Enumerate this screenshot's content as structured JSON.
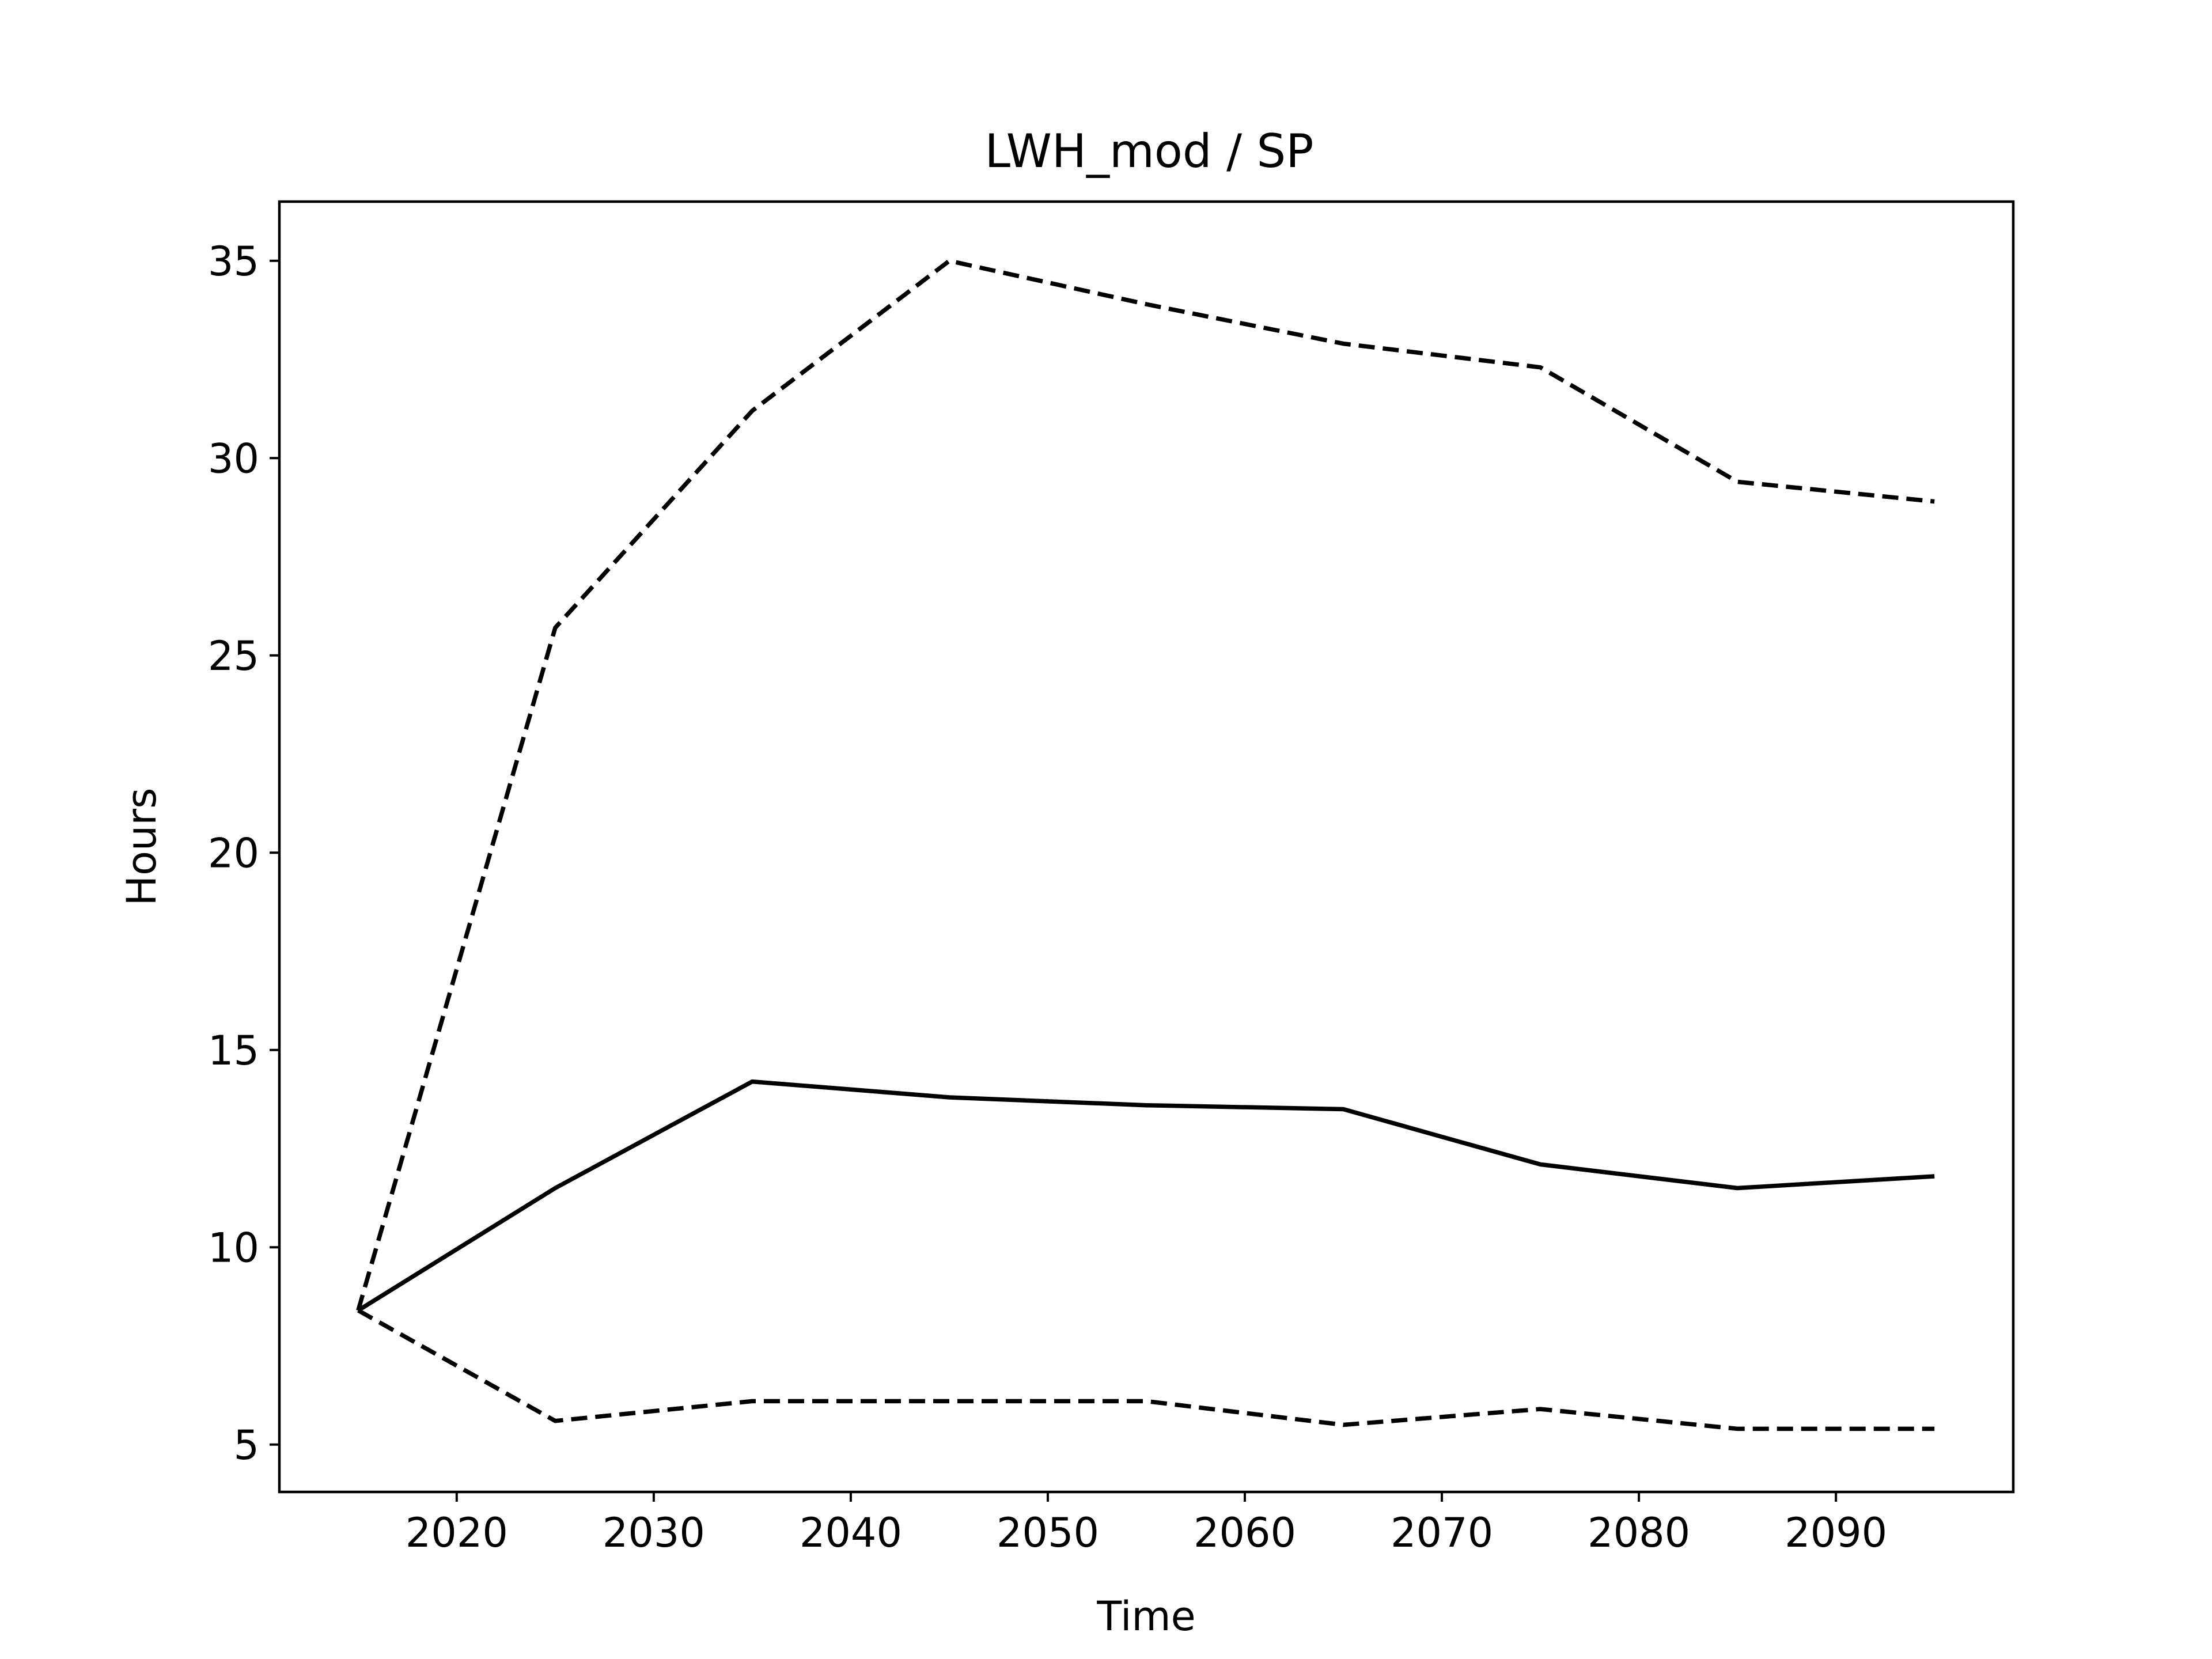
{
  "chart_data": {
    "type": "line",
    "title": "LWH_mod / SP",
    "xlabel": "Time",
    "ylabel": "Hours",
    "xlim": [
      2011,
      2099
    ],
    "ylim": [
      3.8,
      36.5
    ],
    "xticks": [
      2020,
      2030,
      2040,
      2050,
      2060,
      2070,
      2080,
      2090
    ],
    "yticks": [
      5,
      10,
      15,
      20,
      25,
      30,
      35
    ],
    "grid": false,
    "x": [
      2015,
      2025,
      2035,
      2045,
      2055,
      2065,
      2075,
      2085,
      2095
    ],
    "series": [
      {
        "style": "solid",
        "values": [
          8.4,
          11.5,
          14.2,
          13.8,
          13.6,
          13.5,
          12.1,
          11.5,
          11.8
        ]
      },
      {
        "style": "dashed",
        "values": [
          8.4,
          25.7,
          31.2,
          35.0,
          33.9,
          32.9,
          32.3,
          29.4,
          28.9
        ]
      },
      {
        "style": "dashed",
        "values": [
          8.4,
          5.6,
          6.1,
          6.1,
          6.1,
          5.5,
          5.9,
          5.4,
          5.4
        ]
      }
    ]
  }
}
